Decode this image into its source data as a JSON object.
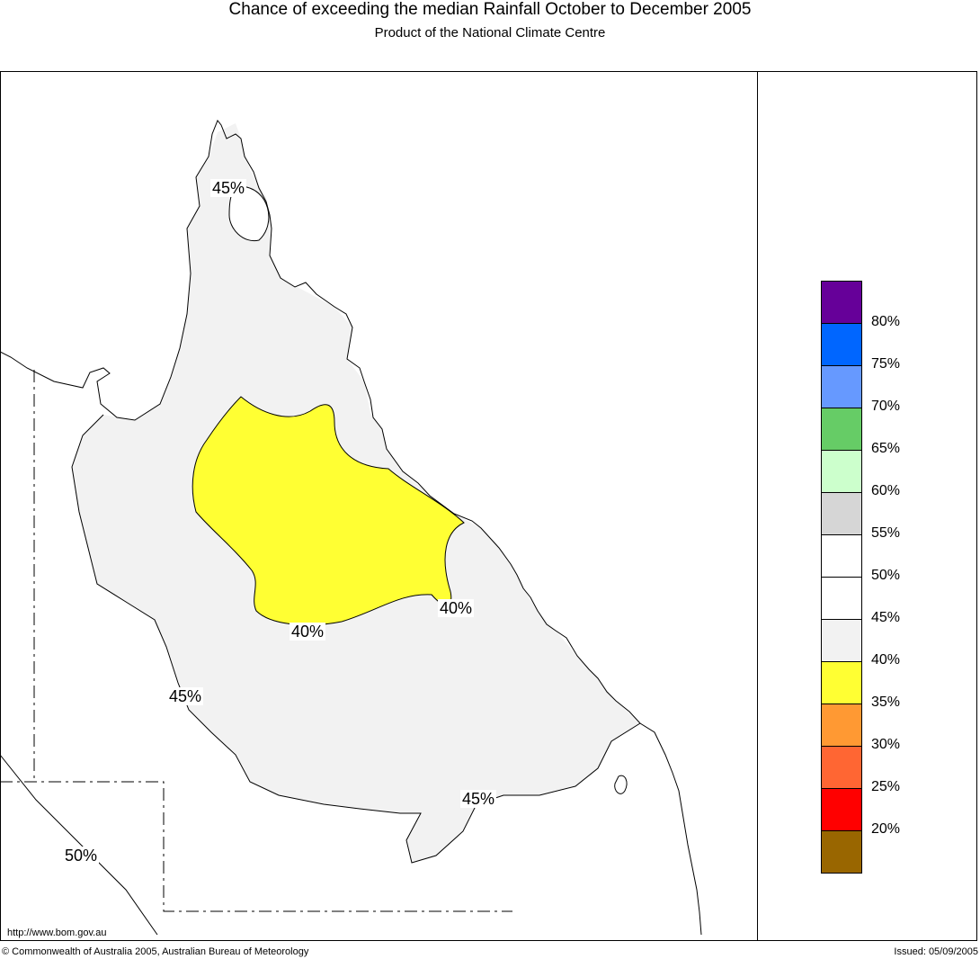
{
  "header": {
    "title": "Chance of exceeding the median Rainfall October to December 2005",
    "subtitle": "Product of the National Climate Centre"
  },
  "map": {
    "labels": {
      "north_45": "45%",
      "central_40_left": "40%",
      "central_40_right": "40%",
      "west_45": "45%",
      "south_45": "45%",
      "sw_50": "50%"
    },
    "colors": {
      "fill_40_45": "#f2f2f2",
      "fill_35_40": "#ffff33"
    }
  },
  "legend": {
    "swatches": [
      {
        "color": "#660099"
      },
      {
        "color": "#0066ff"
      },
      {
        "color": "#6699ff"
      },
      {
        "color": "#66cc66"
      },
      {
        "color": "#ccffcc"
      },
      {
        "color": "#d6d6d6"
      },
      {
        "color": "#ffffff"
      },
      {
        "color": "#ffffff"
      },
      {
        "color": "#f2f2f2"
      },
      {
        "color": "#ffff33"
      },
      {
        "color": "#ff9933"
      },
      {
        "color": "#ff6633"
      },
      {
        "color": "#ff0000"
      },
      {
        "color": "#996600"
      }
    ],
    "ticks": [
      "80%",
      "75%",
      "70%",
      "65%",
      "60%",
      "55%",
      "50%",
      "45%",
      "40%",
      "35%",
      "30%",
      "25%",
      "20%"
    ]
  },
  "footer": {
    "url": "http://www.bom.gov.au",
    "copyright": "© Commonwealth of Australia 2005, Australian Bureau of Meteorology",
    "issued": "Issued: 05/09/2005"
  }
}
